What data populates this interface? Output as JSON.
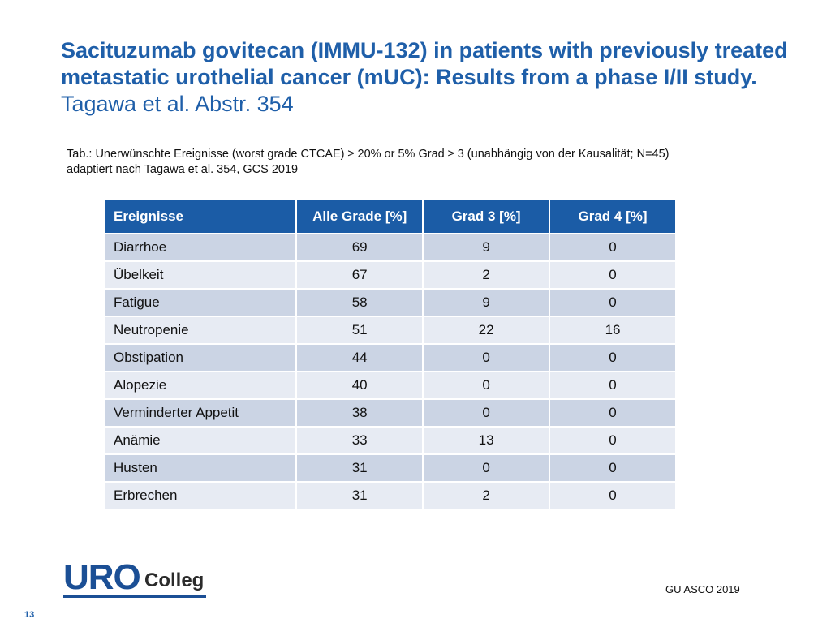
{
  "title": {
    "main": "Sacituzumab govitecan (IMMU-132) in patients with previously treated metastatic urothelial cancer (mUC): Results from a phase I/II study.",
    "reference": "Tagawa et al. Abstr. 354"
  },
  "caption": {
    "line1": "Tab.: Unerwünschte Ereignisse (worst grade CTCAE) ≥ 20% or 5% Grad ≥ 3 (unabhängig von der Kausalität; N=45)",
    "line2": "adaptiert nach Tagawa et al. 354, GCS 2019"
  },
  "table": {
    "headers": [
      "Ereignisse",
      "Alle Grade [%]",
      "Grad 3 [%]",
      "Grad 4 [%]"
    ],
    "rows": [
      [
        "Diarrhoe",
        "69",
        "9",
        "0"
      ],
      [
        "Übelkeit",
        "67",
        "2",
        "0"
      ],
      [
        "Fatigue",
        "58",
        "9",
        "0"
      ],
      [
        "Neutropenie",
        "51",
        "22",
        "16"
      ],
      [
        "Obstipation",
        "44",
        "0",
        "0"
      ],
      [
        "Alopezie",
        "40",
        "0",
        "0"
      ],
      [
        "Verminderter Appetit",
        "38",
        "0",
        "0"
      ],
      [
        "Anämie",
        "33",
        "13",
        "0"
      ],
      [
        "Husten",
        "31",
        "0",
        "0"
      ],
      [
        "Erbrechen",
        "31",
        "2",
        "0"
      ]
    ]
  },
  "logo": {
    "uro": "URO",
    "colleg": "Colleg"
  },
  "footer": {
    "source": "GU ASCO 2019",
    "page_number": "13"
  },
  "colors": {
    "title": "#1f5fa9",
    "header_bg": "#1b5ca6",
    "row_odd": "#cbd4e4",
    "row_even": "#e7ebf3"
  }
}
